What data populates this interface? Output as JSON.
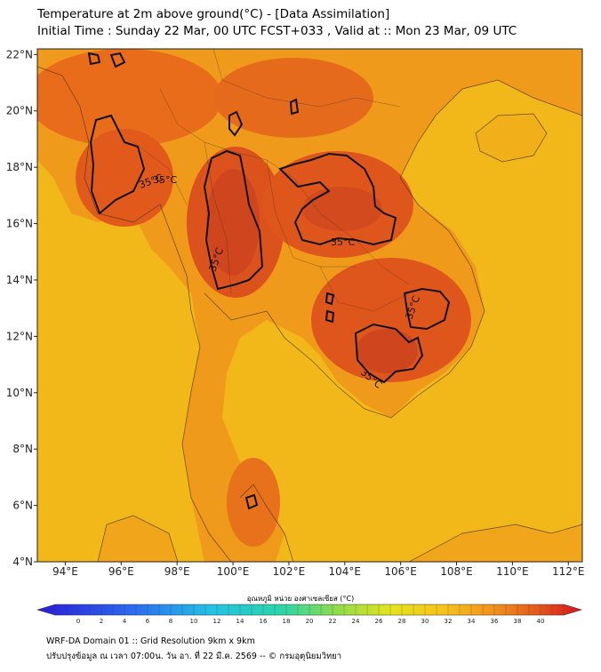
{
  "title_line1": "Temperature at 2m above ground(°C) - [Data Assimilation]",
  "title_line2": "Initial Time : Sunday 22 Mar, 00 UTC FCST+033 , Valid at :: Mon 23 Mar, 09 UTC",
  "map": {
    "lon_ticks": [
      "94°E",
      "96°E",
      "98°E",
      "100°E",
      "102°E",
      "104°E",
      "106°E",
      "108°E",
      "110°E",
      "112°E"
    ],
    "lat_ticks": [
      "22°N",
      "20°N",
      "18°N",
      "16°N",
      "14°N",
      "12°N",
      "10°N",
      "8°N",
      "6°N",
      "4°N"
    ],
    "lon_range": [
      93,
      112.5
    ],
    "lat_range": [
      4,
      22.2
    ],
    "contour_label": "35°C",
    "contour_value": 35,
    "colors": {
      "ocean": "#f2b81a",
      "land": "#ef9a1a",
      "hot": "#e65a1c",
      "hottest": "#d2441e",
      "contour": "#111111"
    }
  },
  "colorbar": {
    "title": "อุณหภูมิ หน่วย องศาเซลเซียส (°C)",
    "ticks": [
      "0",
      "2",
      "4",
      "6",
      "8",
      "10",
      "12",
      "14",
      "16",
      "18",
      "20",
      "22",
      "24",
      "26",
      "28",
      "30",
      "32",
      "34",
      "36",
      "38",
      "40"
    ],
    "min": -2,
    "max": 42
  },
  "footer_line1": "WRF-DA Domain 01 :: Grid Resolution 9km x 9km",
  "footer_line2": "ปรับปรุงข้อมูล ณ เวลา 07:00น. วัน อา. ที่ 22 มี.ค. 2569 -- © กรมอุตุนิยมวิทยา"
}
